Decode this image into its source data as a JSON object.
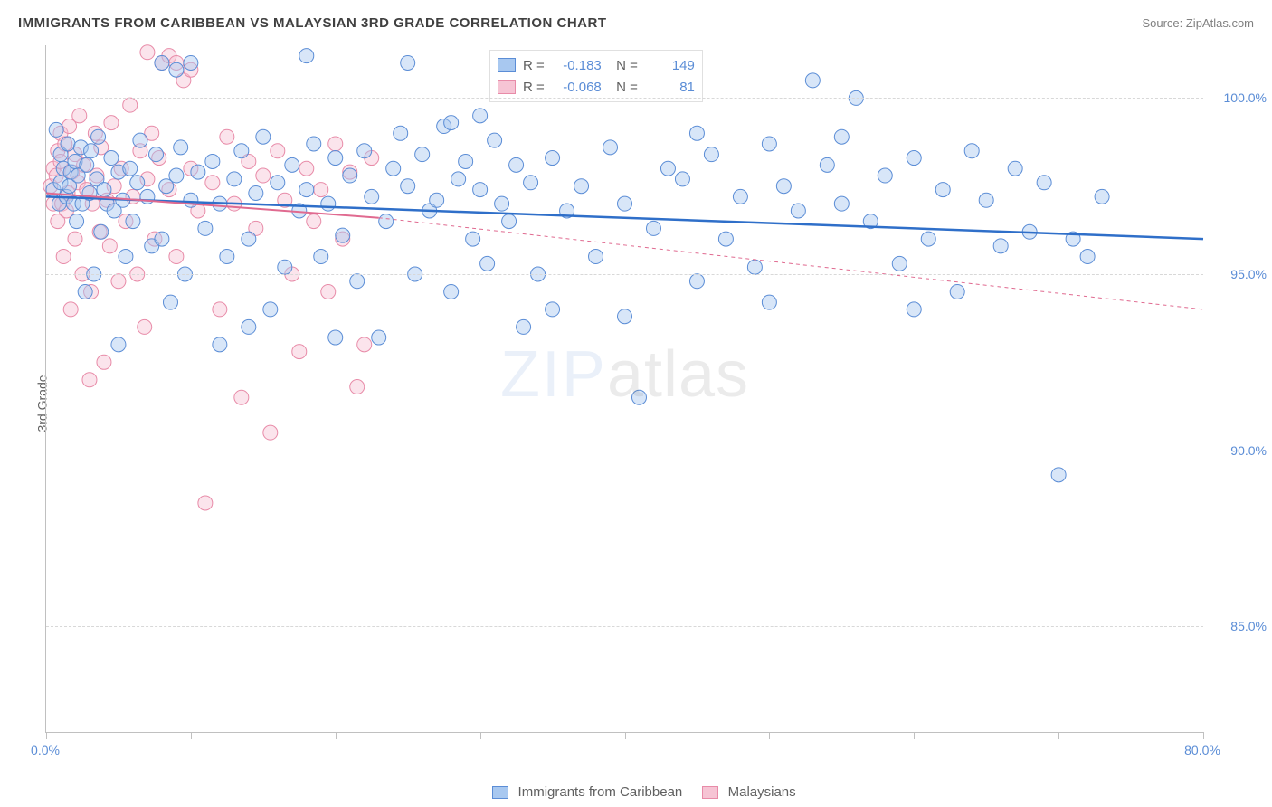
{
  "title": "IMMIGRANTS FROM CARIBBEAN VS MALAYSIAN 3RD GRADE CORRELATION CHART",
  "source": "Source: ZipAtlas.com",
  "y_axis_label": "3rd Grade",
  "watermark": {
    "part1": "ZIP",
    "part2": "atlas"
  },
  "chart": {
    "type": "scatter",
    "xlim": [
      0,
      80
    ],
    "ylim": [
      82,
      101.5
    ],
    "x_ticks_major": [
      0,
      10,
      20,
      30,
      40,
      50,
      60,
      70,
      80
    ],
    "x_tick_labels": {
      "0": "0.0%",
      "80": "80.0%"
    },
    "y_ticks": [
      85,
      90,
      95,
      100
    ],
    "y_tick_labels": [
      "85.0%",
      "90.0%",
      "95.0%",
      "100.0%"
    ],
    "background_color": "#ffffff",
    "grid_color": "#d8d8d8",
    "axis_color": "#c0c0c0",
    "tick_label_color": "#5b8dd6",
    "marker_radius": 8,
    "marker_opacity": 0.45,
    "series": [
      {
        "name": "Immigrants from Caribbean",
        "color_fill": "#a8c8f0",
        "color_stroke": "#5b8dd6",
        "R": "-0.183",
        "N": "149",
        "trend": {
          "x1": 0,
          "y1": 97.2,
          "x2": 80,
          "y2": 96.0,
          "color": "#2f6fc9",
          "width": 2.5,
          "dash": "none",
          "extrapolate": false
        },
        "points": [
          [
            0.5,
            97.4
          ],
          [
            0.7,
            99.1
          ],
          [
            0.9,
            97.0
          ],
          [
            1.0,
            98.4
          ],
          [
            1.0,
            97.6
          ],
          [
            1.2,
            98.0
          ],
          [
            1.4,
            97.2
          ],
          [
            1.5,
            98.7
          ],
          [
            1.6,
            97.5
          ],
          [
            1.7,
            97.9
          ],
          [
            1.9,
            97.0
          ],
          [
            2.0,
            98.2
          ],
          [
            2.1,
            96.5
          ],
          [
            2.2,
            97.8
          ],
          [
            2.4,
            98.6
          ],
          [
            2.5,
            97.0
          ],
          [
            2.7,
            94.5
          ],
          [
            2.8,
            98.1
          ],
          [
            3.0,
            97.3
          ],
          [
            3.1,
            98.5
          ],
          [
            3.3,
            95.0
          ],
          [
            3.5,
            97.7
          ],
          [
            3.6,
            98.9
          ],
          [
            3.8,
            96.2
          ],
          [
            4.0,
            97.4
          ],
          [
            4.2,
            97.0
          ],
          [
            4.5,
            98.3
          ],
          [
            4.7,
            96.8
          ],
          [
            5.0,
            97.9
          ],
          [
            5.3,
            97.1
          ],
          [
            5.5,
            95.5
          ],
          [
            5.8,
            98.0
          ],
          [
            6.0,
            96.5
          ],
          [
            6.3,
            97.6
          ],
          [
            6.5,
            98.8
          ],
          [
            7.0,
            97.2
          ],
          [
            7.3,
            95.8
          ],
          [
            7.6,
            98.4
          ],
          [
            8.0,
            96.0
          ],
          [
            8.3,
            97.5
          ],
          [
            8.6,
            94.2
          ],
          [
            9.0,
            97.8
          ],
          [
            9.3,
            98.6
          ],
          [
            9.6,
            95.0
          ],
          [
            10.0,
            97.1
          ],
          [
            10.5,
            97.9
          ],
          [
            11.0,
            96.3
          ],
          [
            11.5,
            98.2
          ],
          [
            12.0,
            97.0
          ],
          [
            12.5,
            95.5
          ],
          [
            13.0,
            97.7
          ],
          [
            13.5,
            98.5
          ],
          [
            14.0,
            96.0
          ],
          [
            14.5,
            97.3
          ],
          [
            15.0,
            98.9
          ],
          [
            15.5,
            94.0
          ],
          [
            16.0,
            97.6
          ],
          [
            16.5,
            95.2
          ],
          [
            17.0,
            98.1
          ],
          [
            17.5,
            96.8
          ],
          [
            18.0,
            97.4
          ],
          [
            18.5,
            98.7
          ],
          [
            19.0,
            95.5
          ],
          [
            19.5,
            97.0
          ],
          [
            20.0,
            98.3
          ],
          [
            20.5,
            96.1
          ],
          [
            21.0,
            97.8
          ],
          [
            21.5,
            94.8
          ],
          [
            22.0,
            98.5
          ],
          [
            22.5,
            97.2
          ],
          [
            23.0,
            93.2
          ],
          [
            23.5,
            96.5
          ],
          [
            24.0,
            98.0
          ],
          [
            24.5,
            99.0
          ],
          [
            25.0,
            97.5
          ],
          [
            25.5,
            95.0
          ],
          [
            26.0,
            98.4
          ],
          [
            26.5,
            96.8
          ],
          [
            27.0,
            97.1
          ],
          [
            27.5,
            99.2
          ],
          [
            28.0,
            94.5
          ],
          [
            28.5,
            97.7
          ],
          [
            29.0,
            98.2
          ],
          [
            29.5,
            96.0
          ],
          [
            30.0,
            97.4
          ],
          [
            30.5,
            95.3
          ],
          [
            31.0,
            98.8
          ],
          [
            31.5,
            97.0
          ],
          [
            32.0,
            96.5
          ],
          [
            32.5,
            98.1
          ],
          [
            33.0,
            93.5
          ],
          [
            33.5,
            97.6
          ],
          [
            34.0,
            95.0
          ],
          [
            35.0,
            98.3
          ],
          [
            36.0,
            96.8
          ],
          [
            37.0,
            97.5
          ],
          [
            38.0,
            95.5
          ],
          [
            39.0,
            98.6
          ],
          [
            40.0,
            97.0
          ],
          [
            41.0,
            91.5
          ],
          [
            42.0,
            96.3
          ],
          [
            43.0,
            98.0
          ],
          [
            44.0,
            97.7
          ],
          [
            45.0,
            94.8
          ],
          [
            46.0,
            98.4
          ],
          [
            47.0,
            96.0
          ],
          [
            48.0,
            97.2
          ],
          [
            49.0,
            95.2
          ],
          [
            50.0,
            98.7
          ],
          [
            51.0,
            97.5
          ],
          [
            52.0,
            96.8
          ],
          [
            53.0,
            100.5
          ],
          [
            54.0,
            98.1
          ],
          [
            55.0,
            97.0
          ],
          [
            56.0,
            100.0
          ],
          [
            57.0,
            96.5
          ],
          [
            58.0,
            97.8
          ],
          [
            59.0,
            95.3
          ],
          [
            60.0,
            98.3
          ],
          [
            61.0,
            96.0
          ],
          [
            62.0,
            97.4
          ],
          [
            63.0,
            94.5
          ],
          [
            64.0,
            98.5
          ],
          [
            65.0,
            97.1
          ],
          [
            66.0,
            95.8
          ],
          [
            67.0,
            98.0
          ],
          [
            68.0,
            96.2
          ],
          [
            69.0,
            97.6
          ],
          [
            70.0,
            89.3
          ],
          [
            71.0,
            96.0
          ],
          [
            72.0,
            95.5
          ],
          [
            73.0,
            97.2
          ],
          [
            8.0,
            101.0
          ],
          [
            9.0,
            100.8
          ],
          [
            10.0,
            101.0
          ],
          [
            18.0,
            101.2
          ],
          [
            25.0,
            101.0
          ],
          [
            5.0,
            93.0
          ],
          [
            14.0,
            93.5
          ],
          [
            30.0,
            99.5
          ],
          [
            35.0,
            94.0
          ],
          [
            40.0,
            93.8
          ],
          [
            45.0,
            99.0
          ],
          [
            50.0,
            94.2
          ],
          [
            55.0,
            98.9
          ],
          [
            60.0,
            94.0
          ],
          [
            12.0,
            93.0
          ],
          [
            20.0,
            93.2
          ],
          [
            28.0,
            99.3
          ]
        ]
      },
      {
        "name": "Malaysians",
        "color_fill": "#f6c4d4",
        "color_stroke": "#e88ba8",
        "R": "-0.068",
        "N": "81",
        "trend": {
          "x1": 0,
          "y1": 97.3,
          "x2": 23,
          "y2": 96.6,
          "color": "#e06a90",
          "width": 2,
          "dash": "none",
          "extrapolate": {
            "x2": 80,
            "y2": 94.0,
            "dash": "4,4",
            "width": 1
          }
        },
        "points": [
          [
            0.3,
            97.5
          ],
          [
            0.5,
            97.0
          ],
          [
            0.5,
            98.0
          ],
          [
            0.7,
            97.8
          ],
          [
            0.8,
            98.5
          ],
          [
            0.8,
            96.5
          ],
          [
            1.0,
            98.2
          ],
          [
            1.0,
            99.0
          ],
          [
            1.1,
            97.0
          ],
          [
            1.2,
            95.5
          ],
          [
            1.3,
            98.7
          ],
          [
            1.4,
            96.8
          ],
          [
            1.5,
            97.3
          ],
          [
            1.6,
            99.2
          ],
          [
            1.7,
            94.0
          ],
          [
            1.8,
            97.9
          ],
          [
            2.0,
            98.4
          ],
          [
            2.0,
            96.0
          ],
          [
            2.2,
            97.6
          ],
          [
            2.3,
            99.5
          ],
          [
            2.5,
            95.0
          ],
          [
            2.6,
            98.1
          ],
          [
            2.8,
            97.4
          ],
          [
            3.0,
            92.0
          ],
          [
            3.1,
            94.5
          ],
          [
            3.2,
            97.0
          ],
          [
            3.4,
            99.0
          ],
          [
            3.5,
            97.8
          ],
          [
            3.7,
            96.2
          ],
          [
            3.8,
            98.6
          ],
          [
            4.0,
            92.5
          ],
          [
            4.2,
            97.1
          ],
          [
            4.4,
            95.8
          ],
          [
            4.5,
            99.3
          ],
          [
            4.7,
            97.5
          ],
          [
            5.0,
            94.8
          ],
          [
            5.2,
            98.0
          ],
          [
            5.5,
            96.5
          ],
          [
            5.8,
            99.8
          ],
          [
            6.0,
            97.2
          ],
          [
            6.3,
            95.0
          ],
          [
            6.5,
            98.5
          ],
          [
            6.8,
            93.5
          ],
          [
            7.0,
            97.7
          ],
          [
            7.3,
            99.0
          ],
          [
            7.5,
            96.0
          ],
          [
            7.8,
            98.3
          ],
          [
            8.0,
            101.0
          ],
          [
            8.5,
            97.4
          ],
          [
            9.0,
            95.5
          ],
          [
            9.5,
            100.5
          ],
          [
            10.0,
            98.0
          ],
          [
            10.5,
            96.8
          ],
          [
            11.0,
            88.5
          ],
          [
            11.5,
            97.6
          ],
          [
            12.0,
            94.0
          ],
          [
            12.5,
            98.9
          ],
          [
            13.0,
            97.0
          ],
          [
            13.5,
            91.5
          ],
          [
            14.0,
            98.2
          ],
          [
            14.5,
            96.3
          ],
          [
            15.0,
            97.8
          ],
          [
            15.5,
            90.5
          ],
          [
            16.0,
            98.5
          ],
          [
            16.5,
            97.1
          ],
          [
            17.0,
            95.0
          ],
          [
            17.5,
            92.8
          ],
          [
            18.0,
            98.0
          ],
          [
            18.5,
            96.5
          ],
          [
            19.0,
            97.4
          ],
          [
            19.5,
            94.5
          ],
          [
            20.0,
            98.7
          ],
          [
            20.5,
            96.0
          ],
          [
            21.0,
            97.9
          ],
          [
            21.5,
            91.8
          ],
          [
            22.0,
            93.0
          ],
          [
            22.5,
            98.3
          ],
          [
            8.5,
            101.2
          ],
          [
            9.0,
            101.0
          ],
          [
            10.0,
            100.8
          ],
          [
            7.0,
            101.3
          ]
        ]
      }
    ]
  },
  "bottom_legend": [
    {
      "label": "Immigrants from Caribbean",
      "fill": "#a8c8f0",
      "stroke": "#5b8dd6"
    },
    {
      "label": "Malaysians",
      "fill": "#f6c4d4",
      "stroke": "#e88ba8"
    }
  ]
}
